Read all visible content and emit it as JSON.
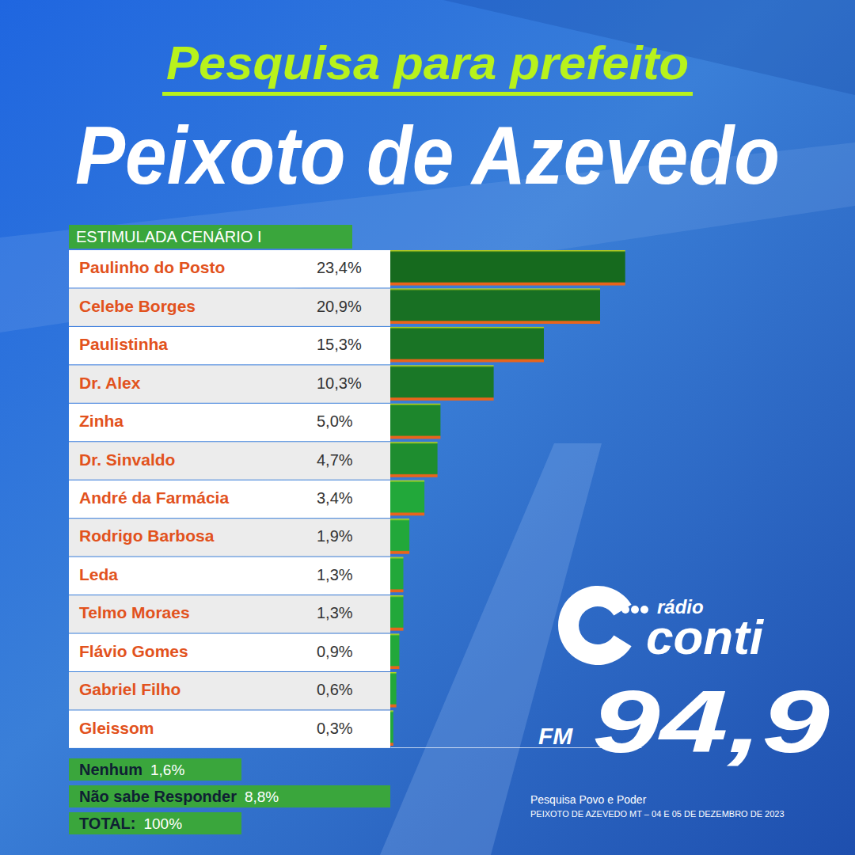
{
  "chart_data": {
    "type": "bar",
    "orientation": "horizontal",
    "title": "Pesquisa para prefeito",
    "subtitle": "Peixoto de Azevedo",
    "scenario": "ESTIMULADA CENÁRIO I",
    "categories": [
      "Paulinho do Posto",
      "Celebe Borges",
      "Paulistinha",
      "Dr. Alex",
      "Zinha",
      "Dr. Sinvaldo",
      "André da Farmácia",
      "Rodrigo Barbosa",
      "Leda",
      "Telmo Moraes",
      "Flávio Gomes",
      "Gabriel Filho",
      "Gleissom"
    ],
    "values": [
      23.4,
      20.9,
      15.3,
      10.3,
      5.0,
      4.7,
      3.4,
      1.9,
      1.3,
      1.3,
      0.9,
      0.6,
      0.3
    ],
    "value_labels": [
      "23,4%",
      "20,9%",
      "15,3%",
      "10,3%",
      "5,0%",
      "4,7%",
      "3,4%",
      "1,9%",
      "1,3%",
      "1,3%",
      "0,9%",
      "0,6%",
      "0,3%"
    ],
    "colors": [
      "#166a1e",
      "#187023",
      "#197425",
      "#1a7827",
      "#1d862c",
      "#1e8d2f",
      "#22a83a",
      "#22a83a",
      "#22a83a",
      "#22a83a",
      "#22a83a",
      "#22a83a",
      "#22a83a"
    ],
    "xlim": [
      0,
      25
    ],
    "tick_labels": false,
    "data_labels": true,
    "summary": [
      {
        "label": "Nenhum",
        "value": "1,6%"
      },
      {
        "label": "Não sabe Responder",
        "value": "8,8%"
      },
      {
        "label": "TOTAL:",
        "value": "100%"
      }
    ],
    "brand": {
      "radio": "rádio",
      "name": "conti",
      "band": "FM",
      "frequency": "94,9"
    },
    "source": [
      "Pesquisa Povo e Poder",
      "PEIXOTO DE AZEVEDO MT – 04 E 05 DE DEZEMBRO DE 2023"
    ]
  }
}
